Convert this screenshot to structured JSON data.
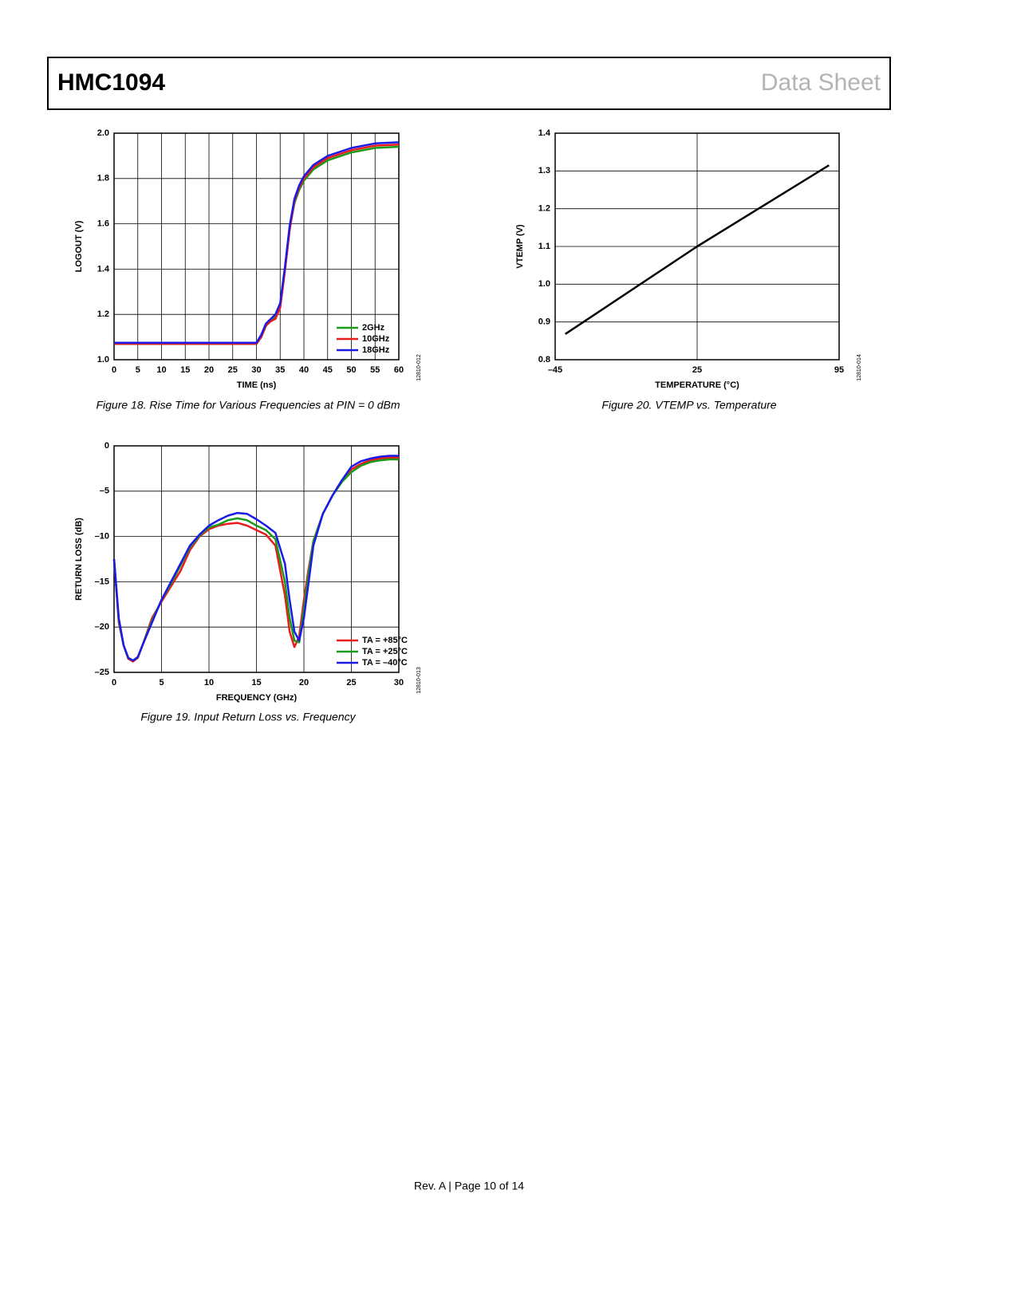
{
  "header": {
    "title": "HMC1094",
    "doc_type": "Data Sheet"
  },
  "chart_data": [
    {
      "type": "line",
      "caption": "Figure 18. Rise Time for Various Frequencies at PIN = 0 dBm",
      "xlabel": "TIME (ns)",
      "ylabel": "LOGOUT (V)",
      "figure_id": "12810-012",
      "xlim": [
        0,
        60
      ],
      "xticks": [
        0,
        5,
        10,
        15,
        20,
        25,
        30,
        35,
        40,
        45,
        50,
        55,
        60
      ],
      "ylim": [
        1.0,
        2.0
      ],
      "yticks": [
        {
          "value": 1,
          "label": "1.0"
        },
        1.2,
        1.4,
        1.6,
        1.8,
        {
          "value": 2,
          "label": "2.0"
        }
      ],
      "grid": true,
      "legend": "lower right",
      "x": [
        0,
        10,
        20,
        29,
        30,
        31,
        32,
        33,
        34,
        35,
        36,
        37,
        38,
        39,
        40,
        42,
        45,
        50,
        55,
        60
      ],
      "series": [
        {
          "name": "2GHz",
          "color": "#1a9a1a",
          "values": [
            1.07,
            1.07,
            1.07,
            1.07,
            1.07,
            1.1,
            1.15,
            1.17,
            1.19,
            1.24,
            1.4,
            1.58,
            1.69,
            1.75,
            1.79,
            1.84,
            1.88,
            1.915,
            1.935,
            1.94
          ]
        },
        {
          "name": "10GHz",
          "color": "#e81c1c",
          "values": [
            1.07,
            1.07,
            1.07,
            1.07,
            1.07,
            1.1,
            1.15,
            1.17,
            1.18,
            1.23,
            1.39,
            1.57,
            1.7,
            1.76,
            1.8,
            1.85,
            1.89,
            1.925,
            1.945,
            1.95
          ]
        },
        {
          "name": "18GHz",
          "color": "#1a1ae8",
          "values": [
            1.075,
            1.075,
            1.075,
            1.075,
            1.075,
            1.11,
            1.16,
            1.18,
            1.2,
            1.25,
            1.41,
            1.59,
            1.71,
            1.77,
            1.81,
            1.86,
            1.9,
            1.935,
            1.955,
            1.96
          ]
        }
      ]
    },
    {
      "type": "line",
      "caption": "Figure 19. Input Return Loss vs. Frequency",
      "xlabel": "FREQUENCY (GHz)",
      "ylabel": "RETURN LOSS (dB)",
      "figure_id": "12810-013",
      "xlim": [
        0,
        30
      ],
      "xticks": [
        0,
        5,
        10,
        15,
        20,
        25,
        30
      ],
      "ylim": [
        -25,
        0
      ],
      "yticks": [
        {
          "value": -25,
          "label": "–25"
        },
        {
          "value": -20,
          "label": "–20"
        },
        {
          "value": -15,
          "label": "–15"
        },
        {
          "value": -10,
          "label": "–10"
        },
        {
          "value": -5,
          "label": "–5"
        },
        0
      ],
      "grid": true,
      "legend": "lower right",
      "x": [
        0,
        0.5,
        1,
        1.5,
        2,
        2.5,
        3,
        4,
        5,
        6,
        7,
        8,
        9,
        10,
        11,
        12,
        13,
        14,
        15,
        16,
        17,
        18,
        18.5,
        19,
        19.5,
        20,
        20.5,
        21,
        22,
        23,
        24,
        25,
        26,
        27,
        28,
        29,
        30
      ],
      "series": [
        {
          "name": "TA = +85°C",
          "color": "#e81c1c",
          "values": [
            -12.5,
            -19.5,
            -22,
            -23.5,
            -23.8,
            -23.4,
            -22,
            -19,
            -17.2,
            -15.5,
            -13.8,
            -11.5,
            -10,
            -9.2,
            -8.8,
            -8.6,
            -8.5,
            -8.8,
            -9.3,
            -9.8,
            -11,
            -16.5,
            -20.5,
            -22.2,
            -21,
            -17,
            -13.5,
            -10.5,
            -7.5,
            -5.5,
            -3.8,
            -2.6,
            -2,
            -1.6,
            -1.4,
            -1.3,
            -1.3
          ]
        },
        {
          "name": "TA = +25°C",
          "color": "#1a9a1a",
          "values": [
            -12.5,
            -19.2,
            -22,
            -23.4,
            -23.7,
            -23.3,
            -22,
            -19.3,
            -17,
            -15.2,
            -13.2,
            -11.2,
            -9.9,
            -9,
            -8.7,
            -8.2,
            -8,
            -8.2,
            -8.8,
            -9.3,
            -10.3,
            -15,
            -19,
            -21.5,
            -21.7,
            -18,
            -14,
            -10.5,
            -7.5,
            -5.5,
            -4,
            -2.9,
            -2.2,
            -1.8,
            -1.6,
            -1.5,
            -1.5
          ]
        },
        {
          "name": "TA = –40°C",
          "color": "#1a1ae8",
          "values": [
            -12.5,
            -19,
            -22,
            -23.4,
            -23.7,
            -23.3,
            -22,
            -19.5,
            -17,
            -15,
            -13,
            -11,
            -9.8,
            -8.8,
            -8.2,
            -7.7,
            -7.4,
            -7.5,
            -8.1,
            -8.8,
            -9.6,
            -13,
            -17,
            -20.5,
            -21.5,
            -19,
            -15,
            -11,
            -7.5,
            -5.5,
            -3.8,
            -2.3,
            -1.7,
            -1.4,
            -1.2,
            -1.1,
            -1.1
          ]
        }
      ]
    },
    {
      "type": "line",
      "caption": "Figure 20. VTEMP vs. Temperature",
      "xlabel": "TEMPERATURE (°C)",
      "ylabel": "VTEMP (V)",
      "figure_id": "12810-014",
      "xlim": [
        -45,
        95
      ],
      "xticks": [
        {
          "value": -45,
          "label": "–45"
        },
        25,
        95
      ],
      "ylim": [
        0.8,
        1.4
      ],
      "yticks": [
        0.8,
        0.9,
        {
          "value": 1,
          "label": "1.0"
        },
        1.1,
        1.2,
        1.3,
        1.4
      ],
      "grid": true,
      "color": "#000000",
      "x": [
        -40,
        25,
        90
      ],
      "values": [
        0.868,
        1.1,
        1.315
      ]
    }
  ],
  "footer": "Rev. A | Page 10 of 14"
}
